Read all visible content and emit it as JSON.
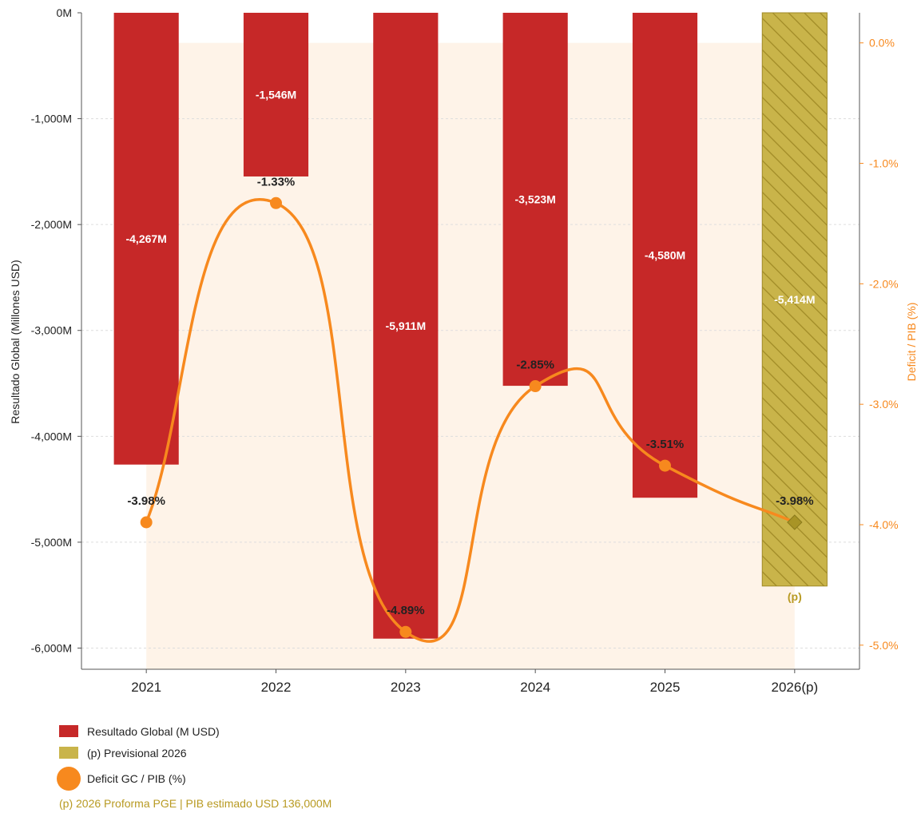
{
  "chart_data": {
    "type": "bar",
    "categories": [
      "2021",
      "2022",
      "2023",
      "2024",
      "2025",
      "2026(p)"
    ],
    "series": [
      {
        "name": "Resultado Global (M USD)",
        "axis": "left",
        "values": [
          -4267,
          -1546,
          -5911,
          -3523,
          -4580,
          -5414
        ],
        "labels": [
          "-4,267M",
          "-1,546M",
          "-5,911M",
          "-3,523M",
          "-4,580M",
          "-5,414M"
        ]
      },
      {
        "name": "Deficit GC / PIB (%)",
        "type": "line",
        "axis": "right",
        "values": [
          -3.98,
          -1.33,
          -4.89,
          -2.85,
          -3.51,
          -3.98
        ],
        "labels": [
          "-3.98%",
          "-1.33%",
          "-4.89%",
          "-2.85%",
          "-3.51%",
          "-3.98%"
        ]
      }
    ],
    "provisional_category": "2026(p)",
    "provisional_marker": "(p)",
    "ylabel": "Resultado Global (Millones USD)",
    "ylabel_right": "Deficit / PIB (%)",
    "ylim": [
      -6200,
      0
    ],
    "ylim_right": [
      -5.2,
      0.25
    ],
    "yticks": [
      0,
      -1000,
      -2000,
      -3000,
      -4000,
      -5000,
      -6000
    ],
    "ytick_labels": [
      "0M",
      "-1,000M",
      "-2,000M",
      "-3,000M",
      "-4,000M",
      "-5,000M",
      "-6,000M"
    ],
    "yticks_right": [
      0,
      -1,
      -2,
      -3,
      -4,
      -5
    ],
    "ytick_labels_right": [
      "0.0%",
      "-1.0%",
      "-2.0%",
      "-3.0%",
      "-4.0%",
      "-5.0%"
    ],
    "grid": true,
    "legend_position": "bottom-left",
    "legend": [
      {
        "label": "Resultado Global (M USD)",
        "color": "#c62828"
      },
      {
        "label": "(p) Previsional 2026",
        "color": "#c9b44a"
      },
      {
        "label": "Deficit GC / PIB (%)",
        "color": "#f7891e"
      }
    ],
    "footnote": "(p) 2026 Proforma PGE | PIB estimado USD 136,000M",
    "colors": {
      "bar": "#c62828",
      "bar_provisional": "#c9b44a",
      "line": "#f7891e",
      "right_axis": "#f7891e",
      "footnote": "#b89a22",
      "area": "#fdebd8"
    }
  }
}
